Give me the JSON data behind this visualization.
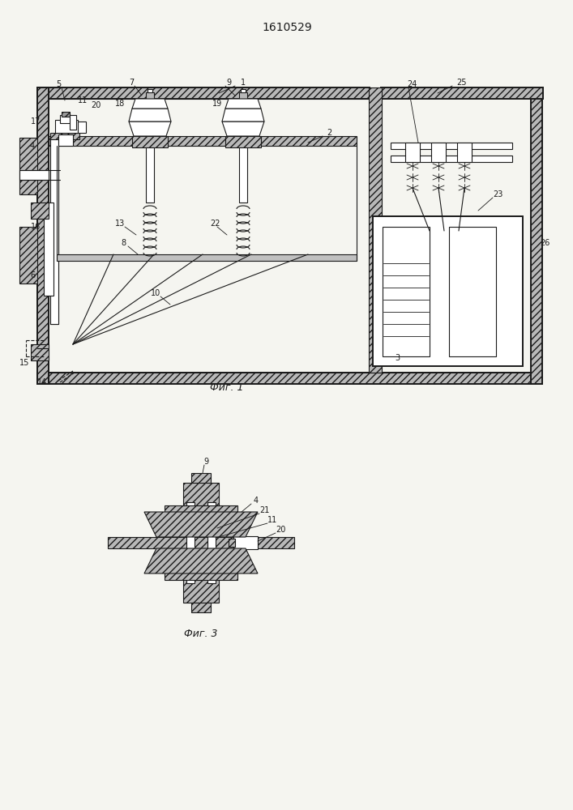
{
  "title": "1610529",
  "fig1_caption": "Фиг. 1",
  "fig3_caption": "Фиг. 3",
  "bg_color": "#f5f5f0",
  "line_color": "#1a1a1a",
  "lw": 0.8,
  "lw2": 1.4,
  "lw3": 0.5
}
